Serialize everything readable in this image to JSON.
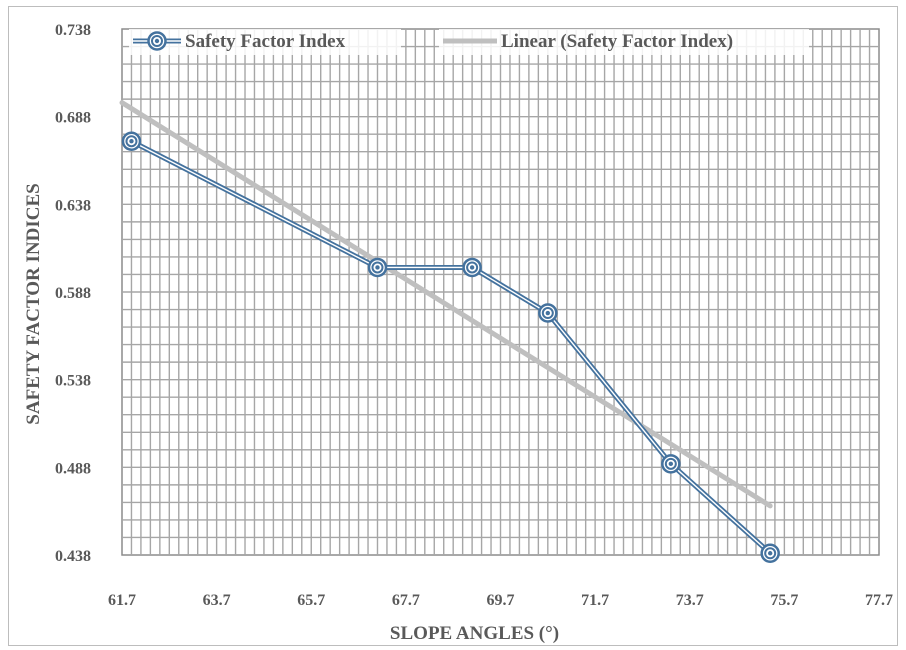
{
  "chart_data": {
    "type": "line",
    "xlabel": "SLOPE ANGLES (°)",
    "ylabel": "SAFETY FACTOR INDICES",
    "xlim": [
      61.7,
      77.7
    ],
    "ylim": [
      0.438,
      0.738
    ],
    "x_ticks": [
      "61.7",
      "63.7",
      "65.7",
      "67.7",
      "69.7",
      "71.7",
      "73.7",
      "75.7",
      "77.7"
    ],
    "y_ticks": [
      "0.438",
      "0.488",
      "0.538",
      "0.588",
      "0.638",
      "0.688",
      "0.738"
    ],
    "grid": true,
    "legend_position": "top",
    "series": [
      {
        "name": "Safety Factor Index",
        "x": [
          61.9,
          67.1,
          69.1,
          70.7,
          73.3,
          75.4
        ],
        "y": [
          0.674,
          0.602,
          0.602,
          0.576,
          0.49,
          0.439
        ],
        "color": "#44729e",
        "marker": "circle"
      },
      {
        "name": "Linear (Safety Factor Index)",
        "x": [
          61.7,
          75.4
        ],
        "y": [
          0.696,
          0.466
        ],
        "color": "#bfbfbf",
        "trendline": true
      }
    ]
  }
}
